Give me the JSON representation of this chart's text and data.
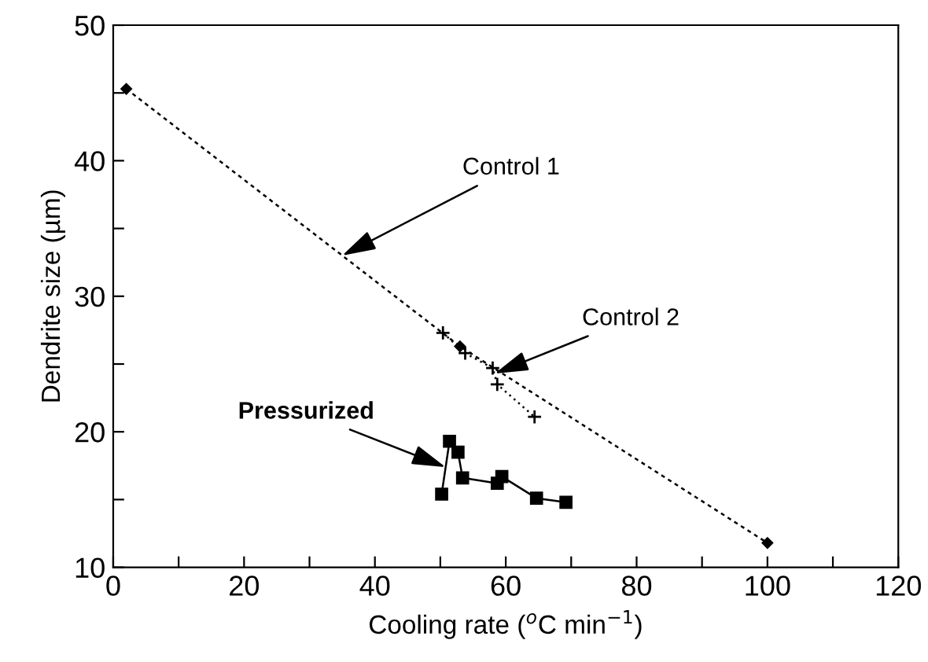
{
  "chart_data": {
    "type": "line",
    "xlabel": "Cooling rate ($^{o}$C min$^{−1}$)",
    "ylabel": "Dendrite size (µm)",
    "xlim": [
      0,
      120
    ],
    "ylim": [
      10,
      50
    ],
    "xticks": [
      0,
      {
        "value": 10,
        "label": null
      },
      20,
      {
        "value": 30,
        "label": null
      },
      40,
      {
        "value": 50,
        "label": null
      },
      60,
      {
        "value": 70,
        "label": null
      },
      80,
      {
        "value": 90,
        "label": null
      },
      100,
      {
        "value": 110,
        "label": null
      },
      120
    ],
    "yticks": [
      10,
      {
        "value": 15,
        "label": null
      },
      20,
      {
        "value": 25,
        "label": null
      },
      30,
      {
        "value": 35,
        "label": null
      },
      40,
      {
        "value": 45,
        "label": null
      },
      50
    ],
    "grid": false,
    "series": [
      {
        "color": "#000000",
        "marker": "diamond",
        "line_style": "dashed",
        "x": [
          2,
          53,
          100
        ],
        "values": [
          45.3,
          26.3,
          11.8
        ]
      },
      {
        "color": "#000000",
        "marker": "cross",
        "line_style": "dotted",
        "x": [
          50.4,
          53.8,
          58.0,
          58.7,
          64.4
        ],
        "values": [
          27.3,
          25.8,
          24.7,
          23.5,
          21.1
        ]
      },
      {
        "color": "#000000",
        "marker": "square",
        "line_style": "solid",
        "x": [
          50.2,
          51.4,
          52.7,
          53.4,
          58.7,
          59.4,
          64.7,
          69.2
        ],
        "values": [
          15.4,
          19.3,
          18.5,
          16.6,
          16.2,
          16.7,
          15.1,
          14.8
        ]
      }
    ],
    "annotations": [
      {
        "text": "Control 1",
        "x": 35,
        "y": 33
      },
      {
        "text": "Control 2",
        "x": 58.3,
        "y": 24.3
      },
      {
        "text": "Pressurized",
        "x": 50.8,
        "y": 17.4
      }
    ]
  }
}
